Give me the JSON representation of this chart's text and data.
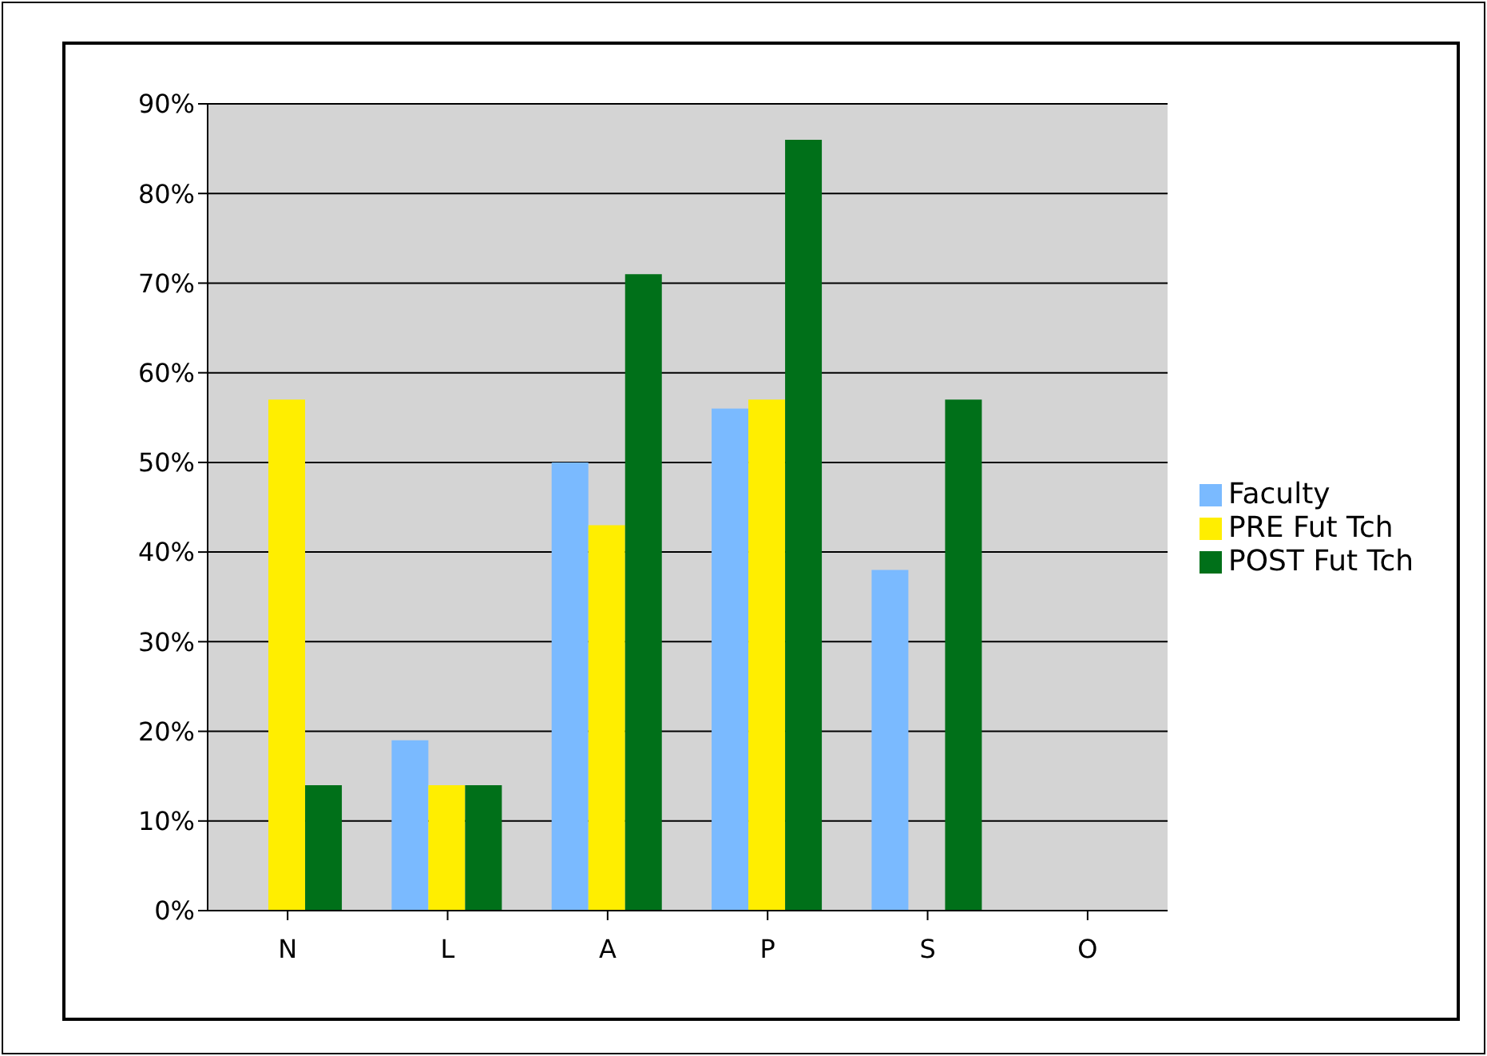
{
  "chart_data": {
    "type": "bar",
    "categories": [
      "N",
      "L",
      "A",
      "P",
      "S",
      "O"
    ],
    "series": [
      {
        "name": "Faculty",
        "color": "#7abaff",
        "values": [
          0,
          19,
          50,
          56,
          38,
          0
        ]
      },
      {
        "name": "PRE Fut Tch",
        "color": "#ffee00",
        "values": [
          57,
          14,
          43,
          57,
          0,
          0
        ]
      },
      {
        "name": "POST Fut Tch",
        "color": "#007019",
        "values": [
          14,
          14,
          71,
          86,
          57,
          0
        ]
      }
    ],
    "ylim": [
      0,
      90
    ],
    "yticks": [
      {
        "value": 0,
        "label": "0%"
      },
      {
        "value": 10,
        "label": "10%"
      },
      {
        "value": 20,
        "label": "20%"
      },
      {
        "value": 30,
        "label": "30%"
      },
      {
        "value": 40,
        "label": "40%"
      },
      {
        "value": 50,
        "label": "50%"
      },
      {
        "value": 60,
        "label": "60%"
      },
      {
        "value": 70,
        "label": "70%"
      },
      {
        "value": 80,
        "label": "80%"
      },
      {
        "value": 90,
        "label": "90%"
      }
    ],
    "grid": "y",
    "legend": "right"
  }
}
